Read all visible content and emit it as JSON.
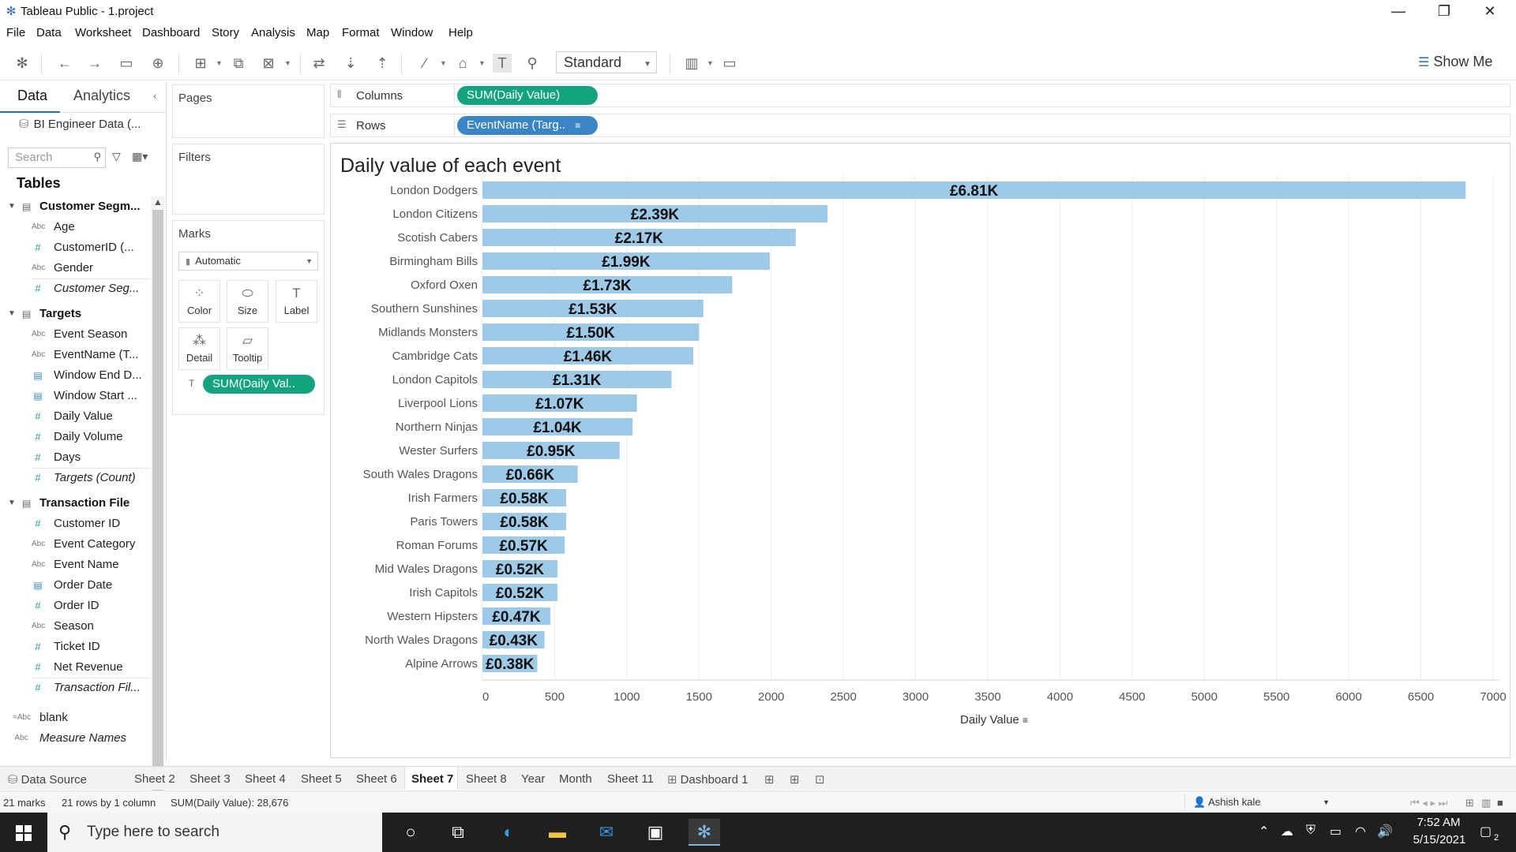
{
  "window": {
    "title": "Tableau Public - 1.project"
  },
  "menu": [
    "File",
    "Data",
    "Worksheet",
    "Dashboard",
    "Story",
    "Analysis",
    "Map",
    "Format",
    "Window",
    "Help"
  ],
  "toolbar": {
    "fit_select": "Standard",
    "show_me": "Show Me"
  },
  "data_pane": {
    "tabs": {
      "data": "Data",
      "analytics": "Analytics"
    },
    "data_source": "BI Engineer Data (...",
    "search_placeholder": "Search",
    "tables_heading": "Tables",
    "tables": [
      {
        "name": "Customer Segm...",
        "fields": [
          {
            "name": "Age",
            "type": "Abc"
          },
          {
            "name": "CustomerID (...",
            "type": "#"
          },
          {
            "name": "Gender",
            "type": "Abc"
          },
          {
            "name": "Customer Seg...",
            "type": "#",
            "italic": true
          }
        ]
      },
      {
        "name": "Targets",
        "fields": [
          {
            "name": "Event Season",
            "type": "Abc"
          },
          {
            "name": "EventName (T...",
            "type": "Abc"
          },
          {
            "name": "Window End D...",
            "type": "date"
          },
          {
            "name": "Window Start ...",
            "type": "date"
          },
          {
            "name": "Daily Value",
            "type": "#"
          },
          {
            "name": "Daily Volume",
            "type": "#"
          },
          {
            "name": "Days",
            "type": "#"
          },
          {
            "name": "Targets (Count)",
            "type": "#",
            "italic": true
          }
        ]
      },
      {
        "name": "Transaction File",
        "fields": [
          {
            "name": "Customer ID",
            "type": "#"
          },
          {
            "name": "Event Category",
            "type": "Abc"
          },
          {
            "name": "Event Name",
            "type": "Abc"
          },
          {
            "name": "Order Date",
            "type": "date"
          },
          {
            "name": "Order ID",
            "type": "#"
          },
          {
            "name": "Season",
            "type": "Abc"
          },
          {
            "name": "Ticket ID",
            "type": "#"
          },
          {
            "name": "Net Revenue",
            "type": "#"
          },
          {
            "name": "Transaction Fil...",
            "type": "#",
            "italic": true
          }
        ]
      }
    ],
    "extra_fields": [
      {
        "name": "blank",
        "type": "=Abc"
      },
      {
        "name": "Measure Names",
        "type": "Abc",
        "italic": true
      }
    ]
  },
  "cards": {
    "pages": "Pages",
    "filters": "Filters",
    "marks": "Marks",
    "marks_type": "Automatic",
    "mark_buttons": [
      "Color",
      "Size",
      "Label",
      "Detail",
      "Tooltip"
    ],
    "label_pill": "SUM(Daily Val.."
  },
  "shelves": {
    "columns_label": "Columns",
    "columns_pill": "SUM(Daily Value)",
    "rows_label": "Rows",
    "rows_pill": "EventName (Targ.."
  },
  "viz": {
    "title": "Daily value of each event",
    "axis_title": "Daily Value"
  },
  "chart_data": {
    "type": "bar",
    "orientation": "horizontal",
    "title": "Daily value of each event",
    "xlabel": "Daily Value",
    "ylabel": "",
    "xlim": [
      0,
      7000
    ],
    "xticks": [
      0,
      500,
      1000,
      1500,
      2000,
      2500,
      3000,
      3500,
      4000,
      4500,
      5000,
      5500,
      6000,
      6500,
      7000
    ],
    "grid": "vertical",
    "bar_color": "#9ecae8",
    "categories": [
      "London Dodgers",
      "London Citizens",
      "Scotish Cabers",
      "Birmingham Bills",
      "Oxford Oxen",
      "Southern Sunshines",
      "Midlands Monsters",
      "Cambridge Cats",
      "London Capitols",
      "Liverpool Lions",
      "Northern Ninjas",
      "Wester Surfers",
      "South Wales Dragons",
      "Irish Farmers",
      "Paris Towers",
      "Roman Forums",
      "Mid Wales Dragons",
      "Irish Capitols",
      "Western Hipsters",
      "North Wales Dragons",
      "Alpine Arrows"
    ],
    "values": [
      6810,
      2390,
      2170,
      1990,
      1730,
      1530,
      1500,
      1460,
      1310,
      1070,
      1040,
      950,
      660,
      580,
      580,
      570,
      520,
      520,
      470,
      430,
      380
    ],
    "data_labels": [
      "£6.81K",
      "£2.39K",
      "£2.17K",
      "£1.99K",
      "£1.73K",
      "£1.53K",
      "£1.50K",
      "£1.46K",
      "£1.31K",
      "£1.07K",
      "£1.04K",
      "£0.95K",
      "£0.66K",
      "£0.58K",
      "£0.58K",
      "£0.57K",
      "£0.52K",
      "£0.52K",
      "£0.47K",
      "£0.43K",
      "£0.38K"
    ]
  },
  "sheet_tabs": [
    "Data Source",
    "Sheet 2",
    "Sheet 3",
    "Sheet 4",
    "Sheet 5",
    "Sheet 6",
    "Sheet 7",
    "Sheet 8",
    "Year",
    "Month",
    "Sheet 11",
    "Dashboard 1"
  ],
  "active_sheet": "Sheet 7",
  "status": {
    "marks": "21 marks",
    "rows_cols": "21 rows by 1 column",
    "sum": "SUM(Daily Value): 28,676",
    "user": "Ashish kale"
  },
  "taskbar": {
    "search_placeholder": "Type here to search",
    "time": "7:52 AM",
    "date": "5/15/2021",
    "notification_count": "2"
  }
}
